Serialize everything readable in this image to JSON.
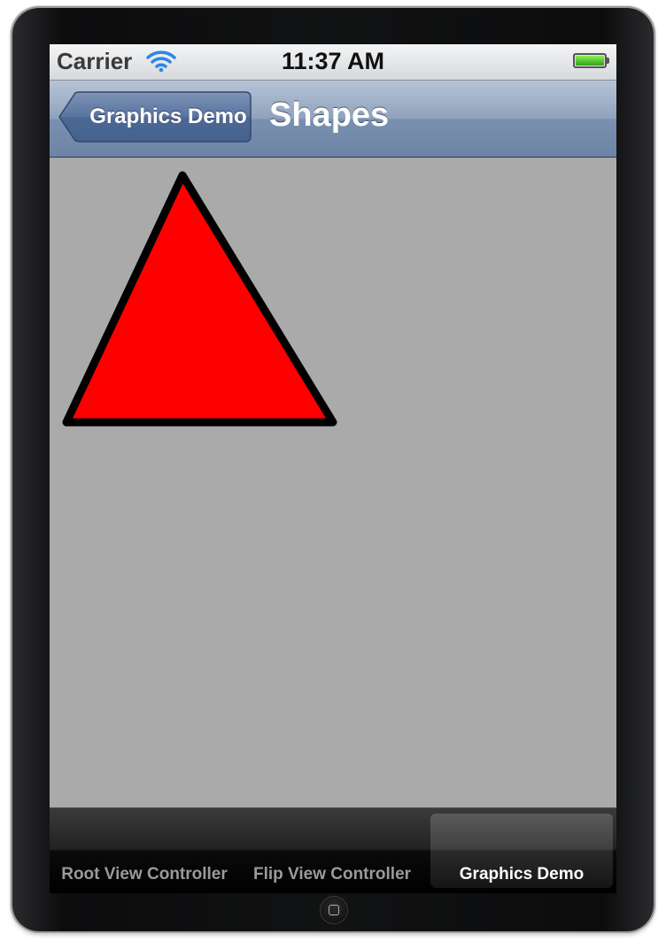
{
  "status_bar": {
    "carrier": "Carrier",
    "time": "11:37 AM",
    "wifi_icon": "wifi-icon",
    "battery_icon": "battery-icon",
    "battery_level": 1.0
  },
  "nav_bar": {
    "back_label": "Graphics Demo",
    "title": "Shapes"
  },
  "canvas": {
    "background": "#aaaaaa",
    "shape": {
      "kind": "triangle",
      "fill": "#ff0000",
      "stroke": "#000000"
    }
  },
  "tab_bar": {
    "tabs": [
      {
        "label": "Root View Controller",
        "selected": false
      },
      {
        "label": "Flip View Controller",
        "selected": false
      },
      {
        "label": "Graphics Demo",
        "selected": true
      }
    ]
  }
}
